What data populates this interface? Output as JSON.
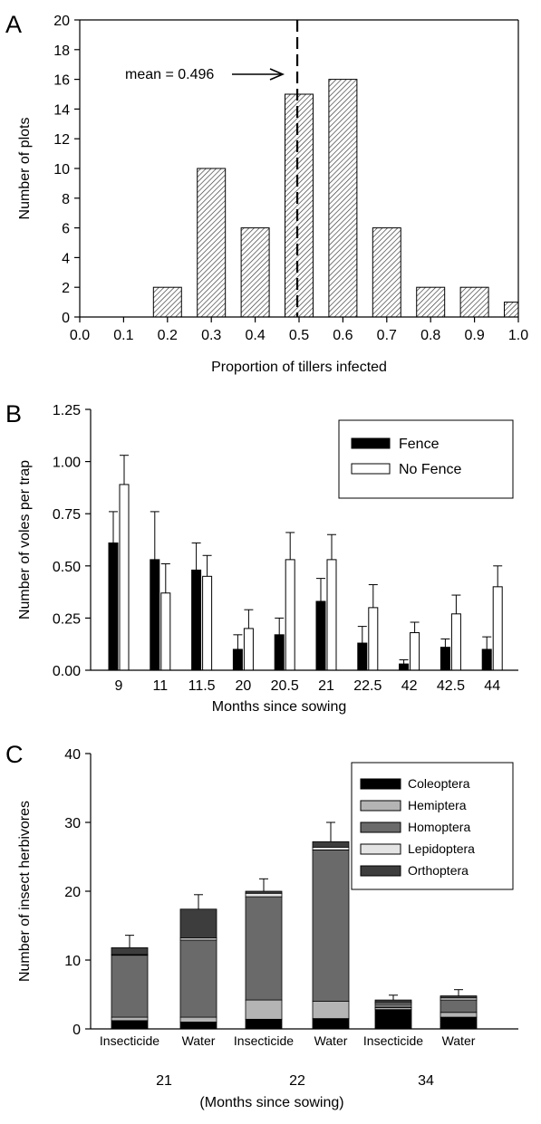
{
  "chart_data": [
    {
      "type": "bar",
      "panel_label": "A",
      "title": "",
      "xlabel": "Proportion of tillers infected",
      "ylabel": "Number of plots",
      "x": [
        0.1,
        0.2,
        0.3,
        0.4,
        0.5,
        0.6,
        0.7,
        0.8,
        0.9,
        1.0
      ],
      "values": [
        0,
        2,
        10,
        6,
        15,
        16,
        6,
        2,
        2,
        1
      ],
      "xticks": [
        "0.0",
        "0.1",
        "0.2",
        "0.3",
        "0.4",
        "0.5",
        "0.6",
        "0.7",
        "0.8",
        "0.9",
        "1.0"
      ],
      "yticks": [
        "0",
        "2",
        "4",
        "6",
        "8",
        "10",
        "12",
        "14",
        "16",
        "18",
        "20"
      ],
      "xlim": [
        0,
        1
      ],
      "ylim": [
        0,
        20
      ],
      "bar_fill": "hatched",
      "mean_line": {
        "value": 0.496,
        "label": "mean = 0.496"
      },
      "grid": false
    },
    {
      "type": "bar",
      "panel_label": "B",
      "title": "",
      "xlabel": "Months since sowing",
      "ylabel": "Number of voles per trap",
      "categories": [
        "9",
        "11",
        "11.5",
        "20",
        "20.5",
        "21",
        "22.5",
        "42",
        "42.5",
        "44"
      ],
      "series": [
        {
          "name": "Fence",
          "color": "#000000",
          "values": [
            0.61,
            0.53,
            0.48,
            0.1,
            0.17,
            0.33,
            0.13,
            0.03,
            0.11,
            0.1
          ],
          "error": [
            0.15,
            0.23,
            0.13,
            0.07,
            0.08,
            0.11,
            0.08,
            0.02,
            0.04,
            0.06
          ]
        },
        {
          "name": "No Fence",
          "color": "#ffffff",
          "values": [
            0.89,
            0.37,
            0.45,
            0.2,
            0.53,
            0.53,
            0.3,
            0.18,
            0.27,
            0.4
          ],
          "error": [
            0.14,
            0.14,
            0.1,
            0.09,
            0.13,
            0.12,
            0.11,
            0.05,
            0.09,
            0.1
          ]
        }
      ],
      "yticks": [
        "0.00",
        "0.25",
        "0.50",
        "0.75",
        "1.00",
        "1.25"
      ],
      "ylim": [
        0,
        1.25
      ],
      "legend": "top-right",
      "grid": false
    },
    {
      "type": "bar",
      "stacked": true,
      "panel_label": "C",
      "title": "",
      "xlabel": "(Months since sowing)",
      "ylabel": "Number of insect herbivores",
      "categories": [
        "Insecticide",
        "Water",
        "Insecticide",
        "Water",
        "Insecticide",
        "Water"
      ],
      "groups": [
        "21",
        "22",
        "34"
      ],
      "series": [
        {
          "name": "Coleoptera",
          "color": "#000000",
          "values": [
            1.2,
            1.0,
            1.4,
            1.5,
            2.8,
            1.7
          ]
        },
        {
          "name": "Hemiptera",
          "color": "#b4b4b4",
          "values": [
            0.5,
            0.7,
            2.8,
            2.5,
            0.3,
            0.7
          ]
        },
        {
          "name": "Homoptera",
          "color": "#6a6a6a",
          "values": [
            9.0,
            11.2,
            15.0,
            22.0,
            0.6,
            1.8
          ]
        },
        {
          "name": "Lepidoptera",
          "color": "#e4e4e4",
          "values": [
            0.1,
            0.3,
            0.5,
            0.4,
            0.2,
            0.3
          ]
        },
        {
          "name": "Orthoptera",
          "color": "#3d3d3d",
          "values": [
            1.0,
            4.2,
            0.3,
            0.8,
            0.3,
            0.3
          ]
        }
      ],
      "error": [
        1.8,
        2.1,
        1.8,
        2.8,
        0.7,
        0.9
      ],
      "yticks": [
        "0",
        "10",
        "20",
        "30",
        "40"
      ],
      "ylim": [
        0,
        40
      ],
      "legend": "top-right",
      "grid": false
    }
  ]
}
